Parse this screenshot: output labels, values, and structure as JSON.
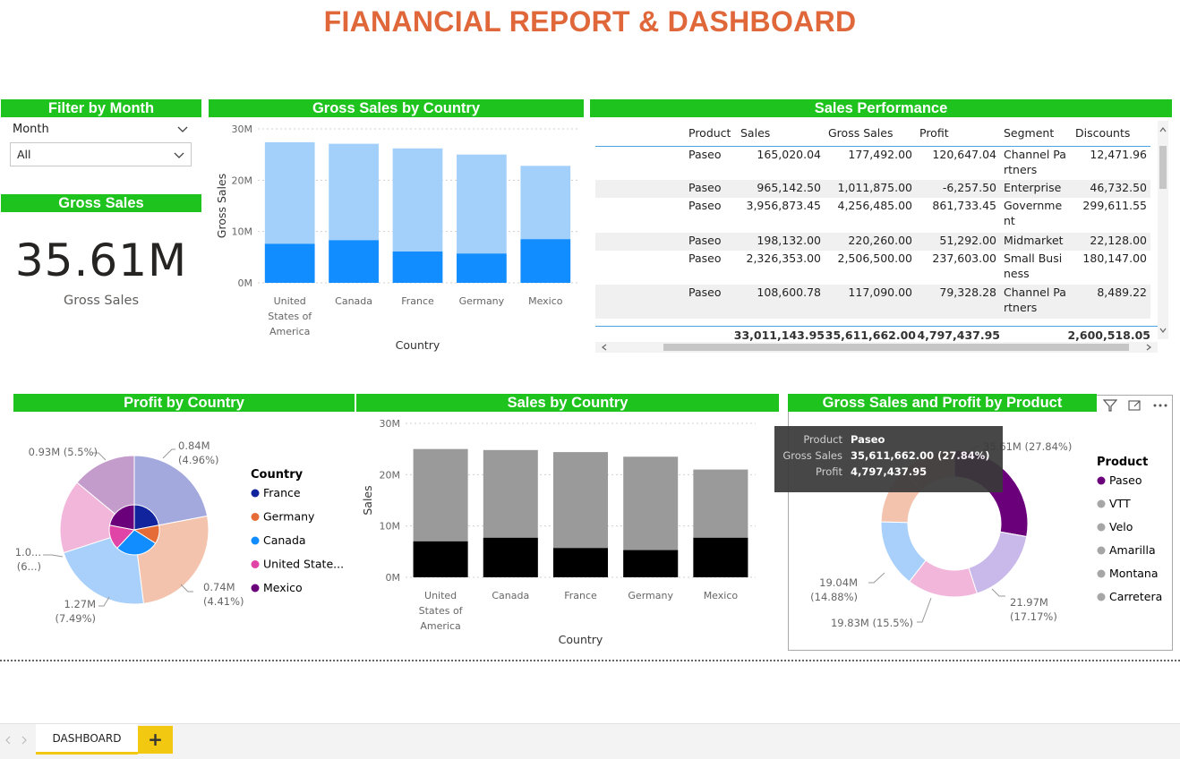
{
  "title": "FIANANCIAL REPORT & DASHBOARD",
  "filter": {
    "header": "Filter by Month",
    "label": "Month",
    "value": "All"
  },
  "gross_kpi": {
    "header": "Gross Sales",
    "value": "35.61M",
    "label": "Gross Sales"
  },
  "gross_by_country": {
    "header": "Gross Sales by Country"
  },
  "sales_performance": {
    "header": "Sales Performance",
    "columns": [
      "Product",
      "Sales",
      "Gross Sales",
      "Profit",
      "Segment",
      "Discounts"
    ],
    "rows": [
      [
        "Paseo",
        "165,020.04",
        "177,492.00",
        "120,647.04",
        "Channel Partners",
        "12,471.96"
      ],
      [
        "Paseo",
        "965,142.50",
        "1,011,875.00",
        "-6,257.50",
        "Enterprise",
        "46,732.50"
      ],
      [
        "Paseo",
        "3,956,873.45",
        "4,256,485.00",
        "861,733.45",
        "Government",
        "299,611.55"
      ],
      [
        "Paseo",
        "198,132.00",
        "220,260.00",
        "51,292.00",
        "Midmarket",
        "22,128.00"
      ],
      [
        "Paseo",
        "2,326,353.00",
        "2,506,500.00",
        "237,603.00",
        "Small Business",
        "180,147.00"
      ],
      [
        "Paseo",
        "108,600.78",
        "117,090.00",
        "79,328.28",
        "Channel Partners",
        "8,489.22"
      ]
    ],
    "totals": [
      "",
      "33,011,143.95",
      "35,611,662.00",
      "4,797,437.95",
      "",
      "2,600,518.05"
    ]
  },
  "profit_by_country": {
    "header": "Profit by Country"
  },
  "sales_by_country": {
    "header": "Sales by Country"
  },
  "product_chart": {
    "header": "Gross Sales and Profit by Product"
  },
  "tooltip": {
    "product_label": "Product",
    "product_value": "Paseo",
    "gross_label": "Gross Sales",
    "gross_value": "35,611,662.00 (27.84%)",
    "profit_label": "Profit",
    "profit_value": "4,797,437.95"
  },
  "tabs": {
    "active": "DASHBOARD",
    "add": "+"
  },
  "colors": {
    "accent": "#1ec31e",
    "title": "#e0673a",
    "tab": "#f2c811"
  },
  "chart_data": [
    {
      "type": "bar",
      "title": "Gross Sales by Country",
      "categories": [
        "United States of America",
        "Canada",
        "France",
        "Germany",
        "Mexico"
      ],
      "series": [
        {
          "values": [
            27.4,
            27.1,
            26.2,
            25.0,
            22.8
          ],
          "color": "#a3d0fb"
        },
        {
          "values": [
            7.6,
            8.3,
            6.1,
            5.7,
            8.5
          ],
          "color": "#118dff"
        }
      ],
      "xlabel": "Country",
      "ylabel": "Gross Sales",
      "yticks": [
        "0M",
        "10M",
        "20M",
        "30M"
      ],
      "ylim": [
        0,
        30
      ]
    },
    {
      "type": "bar",
      "title": "Sales by Country",
      "categories": [
        "United States of America",
        "Canada",
        "France",
        "Germany",
        "Mexico"
      ],
      "series": [
        {
          "values": [
            25.0,
            24.8,
            24.4,
            23.5,
            21.0
          ],
          "color": "#9a9a9a"
        },
        {
          "values": [
            7.0,
            7.7,
            5.7,
            5.3,
            7.7
          ],
          "color": "#000000"
        }
      ],
      "xlabel": "Country",
      "ylabel": "Sales",
      "yticks": [
        "0M",
        "10M",
        "20M",
        "30M"
      ],
      "ylim": [
        0,
        30
      ]
    },
    {
      "type": "pie",
      "title": "Profit by Country",
      "legend_title": "Country",
      "legend": [
        {
          "name": "France",
          "color": "#12239e"
        },
        {
          "name": "Germany",
          "color": "#e66c37"
        },
        {
          "name": "Canada",
          "color": "#118dff"
        },
        {
          "name": "United State...",
          "color": "#e044a7"
        },
        {
          "name": "Mexico",
          "color": "#6b007b"
        }
      ],
      "slices": [
        {
          "value": 22,
          "color": "#a3a8dd"
        },
        {
          "value": 26,
          "color": "#f4c3ad"
        },
        {
          "value": 22,
          "color": "#a8d0fb"
        },
        {
          "value": 16,
          "color": "#f2b6db"
        },
        {
          "value": 14,
          "color": "#c39ccb"
        }
      ],
      "inner": [
        {
          "value": 22,
          "color": "#12239e"
        },
        {
          "value": 12,
          "color": "#e66c37"
        },
        {
          "value": 28,
          "color": "#118dff"
        },
        {
          "value": 16,
          "color": "#e044a7"
        },
        {
          "value": 22,
          "color": "#6b007b"
        }
      ],
      "labels": [
        {
          "l1": "0.84M",
          "l2": "(4.96%)"
        },
        {
          "l1": "0.74M",
          "l2": "(4.41%)"
        },
        {
          "l1": "1.27M",
          "l2": "(7.49%)"
        },
        {
          "l1": "1.0...",
          "l2": "(6...)"
        },
        {
          "l1": "0.93M (5.5%)",
          "l2": ""
        }
      ]
    },
    {
      "type": "pie",
      "title": "Gross Sales and Profit by Product",
      "legend_title": "Product",
      "legend": [
        {
          "name": "Paseo",
          "color": "#6b007b"
        },
        {
          "name": "VTT",
          "color": "#a6a6a6"
        },
        {
          "name": "Velo",
          "color": "#a6a6a6"
        },
        {
          "name": "Amarilla",
          "color": "#a6a6a6"
        },
        {
          "name": "Montana",
          "color": "#a6a6a6"
        },
        {
          "name": "Carretera",
          "color": "#a6a6a6"
        }
      ],
      "slices": [
        {
          "value": 27.84,
          "color": "#6b007b"
        },
        {
          "value": 17.17,
          "color": "#c9b9ea"
        },
        {
          "value": 15.5,
          "color": "#f2b6db"
        },
        {
          "value": 14.88,
          "color": "#a8d0fb"
        },
        {
          "value": 12.3,
          "color": "#f4c3ad"
        },
        {
          "value": 12.31,
          "color": "#f4c3ad"
        }
      ],
      "labels": [
        {
          "l1": "35.61M (27.84%)",
          "l2": ""
        },
        {
          "l1": "21.97M",
          "l2": "(17.17%)"
        },
        {
          "l1": "19.83M (15.5%)",
          "l2": ""
        },
        {
          "l1": "19.04M",
          "l2": "(14.88%)"
        }
      ]
    }
  ]
}
